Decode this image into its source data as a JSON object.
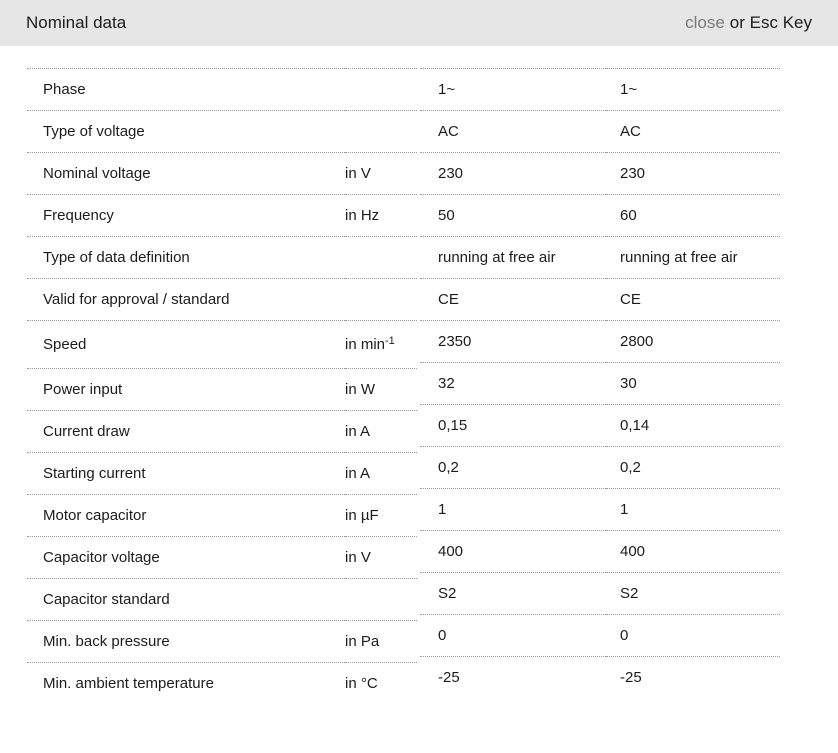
{
  "header": {
    "title": "Nominal data",
    "close_label": "close",
    "close_suffix": "or Esc Key"
  },
  "colors": {
    "header_bg": "#e6e6e6",
    "close_gray": "#7b7b7b",
    "text": "#1c1c1c",
    "divider": "#9b9b9b"
  },
  "table": {
    "rows": [
      {
        "label": "Phase",
        "unit": "",
        "values": [
          "1~",
          "1~"
        ]
      },
      {
        "label": "Type of voltage",
        "unit": "",
        "values": [
          "AC",
          "AC"
        ]
      },
      {
        "label": "Nominal voltage",
        "unit": "in V",
        "values": [
          "230",
          "230"
        ]
      },
      {
        "label": "Frequency",
        "unit": "in Hz",
        "values": [
          "50",
          "60"
        ]
      },
      {
        "label": "Type of data definition",
        "unit": "",
        "values": [
          "running at free air",
          "running at free air"
        ]
      },
      {
        "label": "Valid for approval / standard",
        "unit": "",
        "values": [
          "CE",
          "CE"
        ]
      },
      {
        "label": "Speed",
        "unit": "in min",
        "unit_sup": "-1",
        "values": [
          "2350",
          "2800"
        ]
      },
      {
        "label": "Power input",
        "unit": "in W",
        "values": [
          "32",
          "30"
        ]
      },
      {
        "label": "Current draw",
        "unit": "in A",
        "values": [
          "0,15",
          "0,14"
        ]
      },
      {
        "label": "Starting current",
        "unit": "in A",
        "values": [
          "0,2",
          "0,2"
        ]
      },
      {
        "label": "Motor capacitor",
        "unit": "in µF",
        "values": [
          "1",
          "1"
        ]
      },
      {
        "label": "Capacitor voltage",
        "unit": "in V",
        "values": [
          "400",
          "400"
        ]
      },
      {
        "label": "Capacitor standard",
        "unit": "",
        "values": [
          "S2",
          "S2"
        ]
      },
      {
        "label": "Min. back pressure",
        "unit": "in Pa",
        "values": [
          "0",
          "0"
        ]
      },
      {
        "label": "Min. ambient temperature",
        "unit": "in °C",
        "values": [
          "-25",
          "-25"
        ]
      }
    ]
  }
}
